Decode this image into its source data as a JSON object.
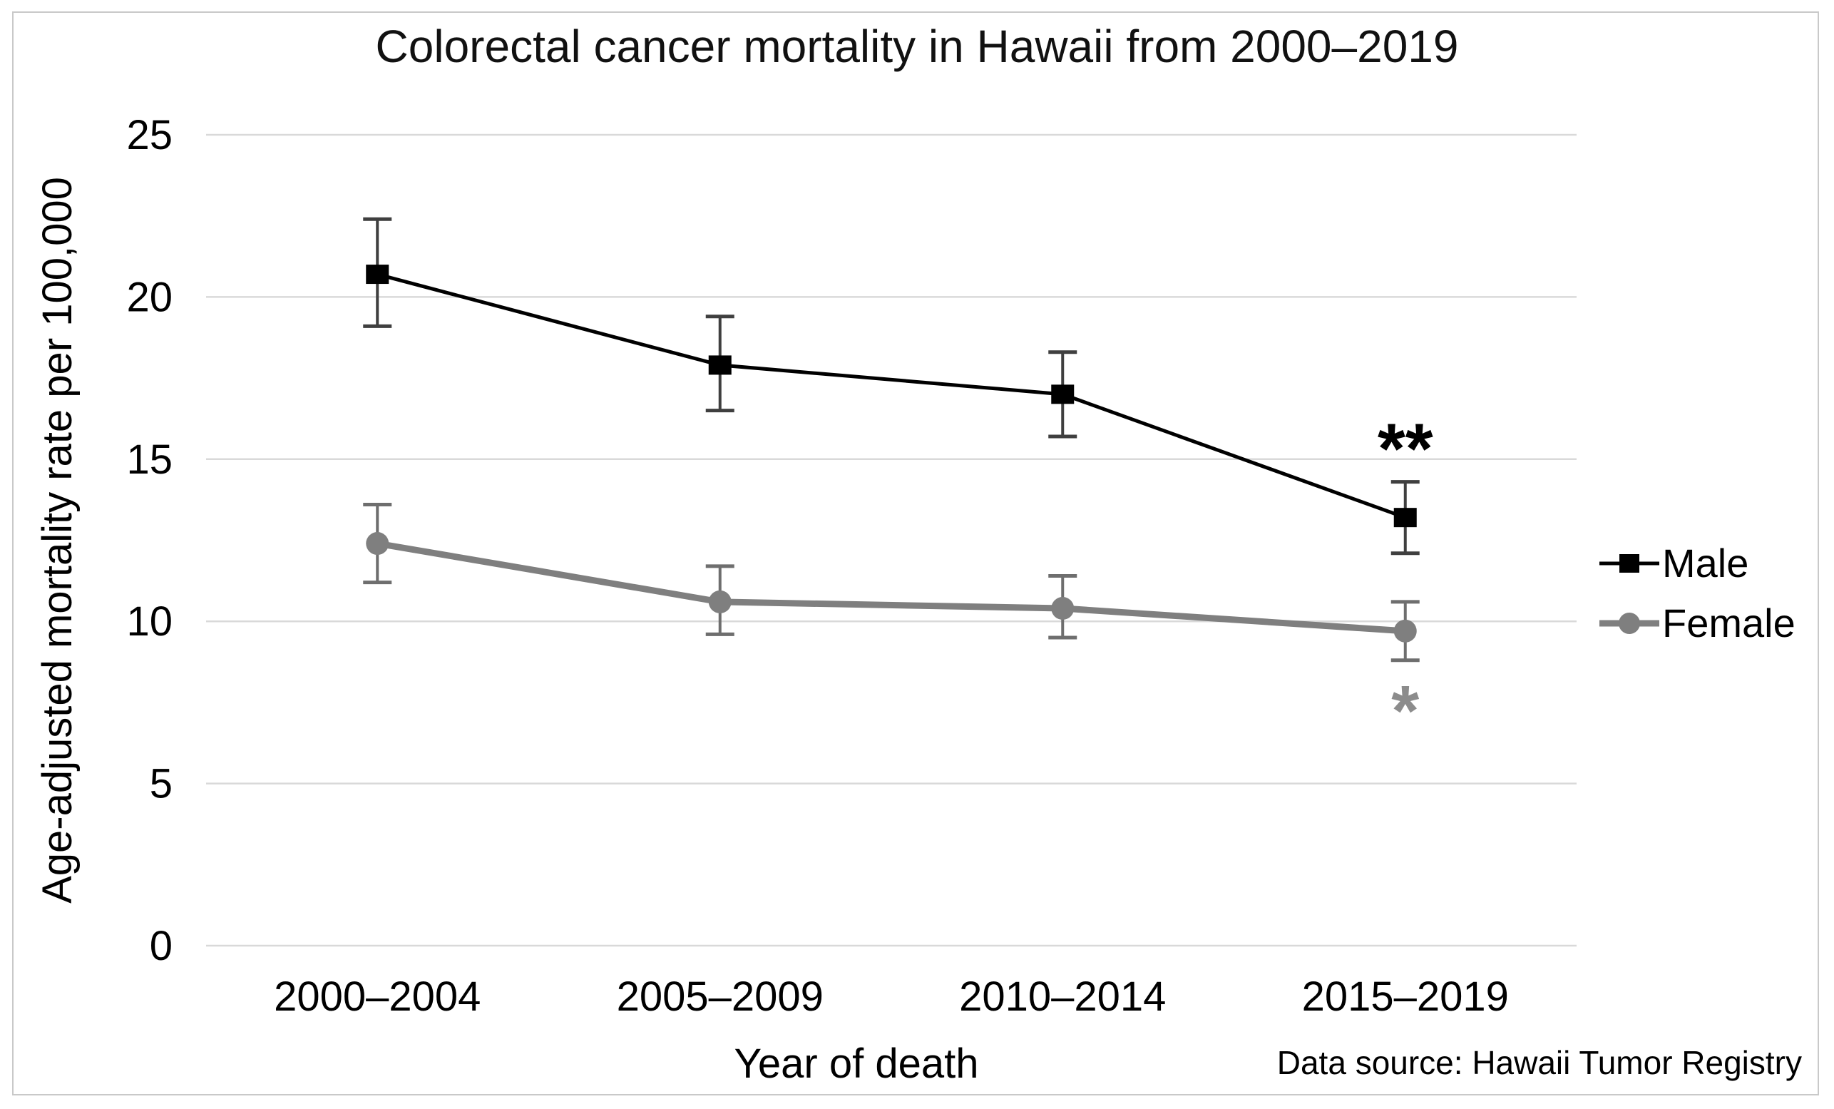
{
  "chart_data": {
    "type": "line",
    "title": "Colorectal cancer mortality in Hawaii from 2000–2019",
    "xlabel": "Year of death",
    "ylabel": "Age-adjusted mortality rate per 100,000",
    "source": "Data source: Hawaii Tumor Registry",
    "categories": [
      "2000–2004",
      "2005–2009",
      "2010–2014",
      "2015–2019"
    ],
    "ylim": [
      0,
      25
    ],
    "yticks": [
      0,
      5,
      10,
      15,
      20,
      25
    ],
    "grid": "horizontal-only",
    "legend_position": "right",
    "colors": {
      "gridline": "#d9d9d9",
      "frame_border": "#c9c9c9",
      "text": "#000000"
    },
    "series": [
      {
        "name": "Male",
        "marker": "square",
        "color": "#000000",
        "error_color": "#3f3f3f",
        "line_width": 5,
        "values": [
          20.7,
          17.9,
          17.0,
          13.2
        ],
        "ci_low": [
          19.1,
          16.5,
          15.7,
          12.1
        ],
        "ci_high": [
          22.4,
          19.4,
          18.3,
          14.3
        ],
        "annotation": {
          "text": "**",
          "category_index": 3,
          "placement": "above",
          "color": "#000000"
        }
      },
      {
        "name": "Female",
        "marker": "circle",
        "color": "#7f7f7f",
        "error_color": "#6e6e6e",
        "line_width": 9,
        "values": [
          12.4,
          10.6,
          10.4,
          9.7
        ],
        "ci_low": [
          11.2,
          9.6,
          9.5,
          8.8
        ],
        "ci_high": [
          13.6,
          11.7,
          11.4,
          10.6
        ],
        "annotation": {
          "text": "*",
          "category_index": 3,
          "placement": "below",
          "color": "#8c8c8c"
        }
      }
    ]
  }
}
